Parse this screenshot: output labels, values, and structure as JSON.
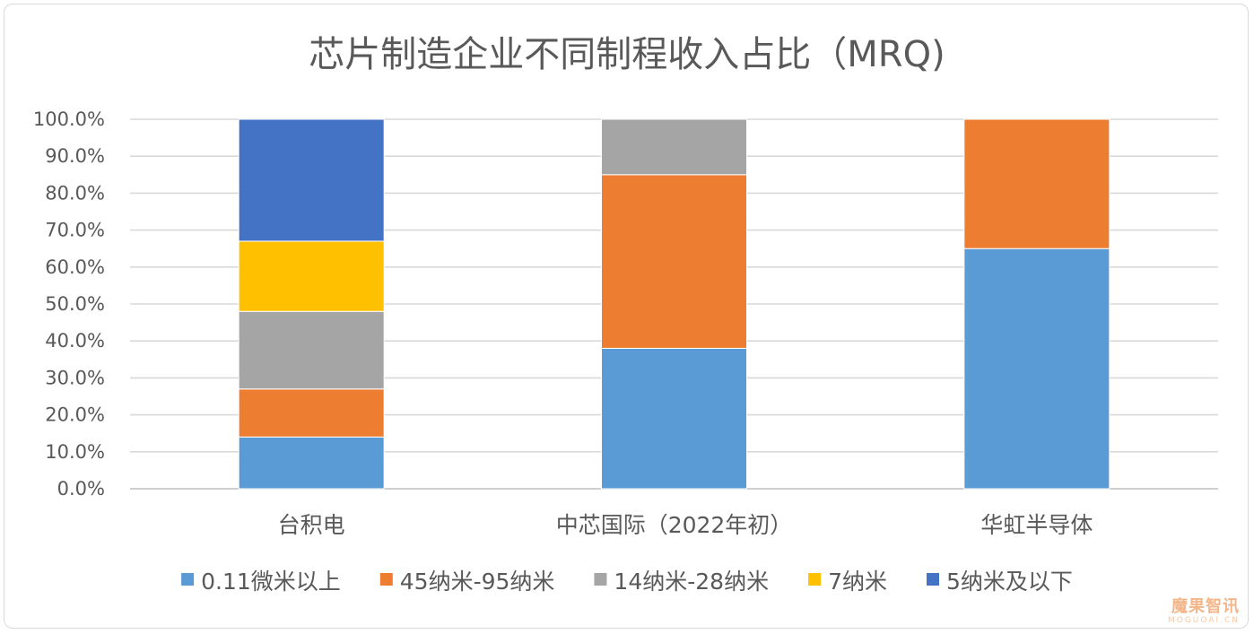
{
  "chart_data": {
    "type": "bar",
    "stacked": true,
    "title": "芯片制造企业不同制程收入占比（MRQ)",
    "categories": [
      "台积电",
      "中芯国际（2022年初）",
      "华虹半导体"
    ],
    "y_ticks": [
      "0.0%",
      "10.0%",
      "20.0%",
      "30.0%",
      "40.0%",
      "50.0%",
      "60.0%",
      "70.0%",
      "80.0%",
      "90.0%",
      "100.0%"
    ],
    "ylim": [
      0,
      100
    ],
    "grid": true,
    "legend_position": "bottom",
    "series": [
      {
        "name": "0.11微米以上",
        "color": "#5b9bd5",
        "values": [
          14,
          38,
          65
        ]
      },
      {
        "name": "45纳米-95纳米",
        "color": "#ed7d31",
        "values": [
          13,
          47,
          35
        ]
      },
      {
        "name": "14纳米-28纳米",
        "color": "#a5a5a5",
        "values": [
          21,
          15,
          0
        ]
      },
      {
        "name": "7纳米",
        "color": "#ffc000",
        "values": [
          19,
          0,
          0
        ]
      },
      {
        "name": "5纳米及以下",
        "color": "#4472c4",
        "values": [
          33,
          0,
          0
        ]
      }
    ]
  },
  "watermark": {
    "main": "魔果智讯",
    "sub": "MOGUOAI.CN"
  }
}
